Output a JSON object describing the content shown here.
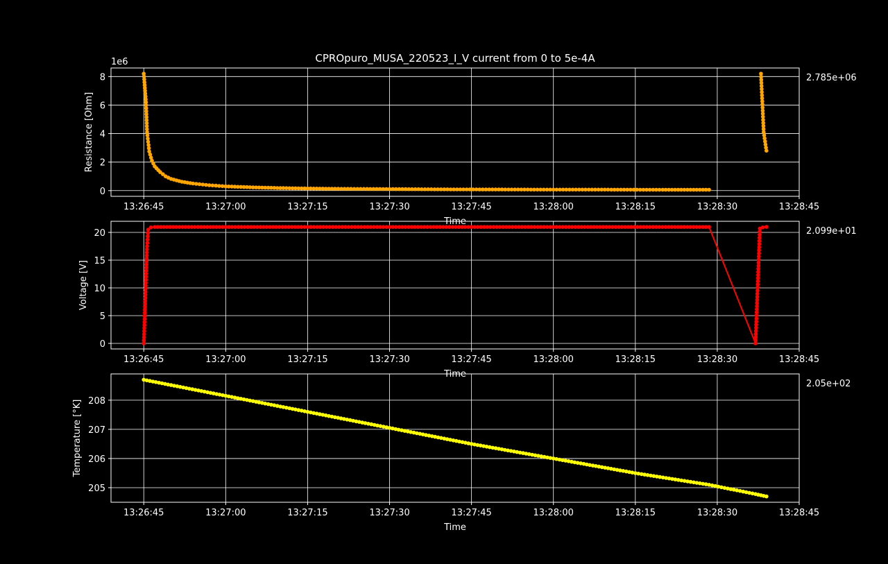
{
  "figure": {
    "title": "CPROpuro_MUSA_220523_I_V current from 0 to 5e-4A",
    "background": "#000000"
  },
  "chart_data": [
    {
      "type": "line",
      "ylabel": "Resistance [Ohm]",
      "xlabel": "Time",
      "offset_text": "1e6",
      "last_value_label": "2.785e+06",
      "color": "#FFA500",
      "grid": true,
      "xlim": [
        "13:26:39",
        "13:28:45"
      ],
      "ylim": [
        -0.4,
        8.6
      ],
      "yticks": [
        0,
        2,
        4,
        6,
        8
      ],
      "xticks": [
        "13:26:45",
        "13:27:00",
        "13:27:15",
        "13:27:30",
        "13:27:45",
        "13:28:00",
        "13:28:15",
        "13:28:30",
        "13:28:45"
      ],
      "series": [
        {
          "segments": [
            {
              "points": [
                [
                  "13:26:45.0",
                  8.2
                ],
                [
                  "13:26:45.2",
                  7.2
                ],
                [
                  "13:26:45.4",
                  6.2
                ],
                [
                  "13:26:45.6",
                  4.1
                ],
                [
                  "13:26:46.0",
                  2.75
                ],
                [
                  "13:26:46.5",
                  2.1
                ],
                [
                  "13:26:47.0",
                  1.7
                ],
                [
                  "13:26:48.0",
                  1.3
                ],
                [
                  "13:26:49.0",
                  1.0
                ],
                [
                  "13:26:50.0",
                  0.82
                ],
                [
                  "13:26:52.0",
                  0.62
                ],
                [
                  "13:26:54.0",
                  0.5
                ],
                [
                  "13:26:57.0",
                  0.38
                ],
                [
                  "13:27:00.0",
                  0.3
                ],
                [
                  "13:27:05.0",
                  0.23
                ],
                [
                  "13:27:10.0",
                  0.18
                ],
                [
                  "13:27:15.0",
                  0.15
                ],
                [
                  "13:27:20.0",
                  0.13
                ],
                [
                  "13:27:30.0",
                  0.11
                ],
                [
                  "13:27:40.0",
                  0.09
                ],
                [
                  "13:27:50.0",
                  0.08
                ],
                [
                  "13:28:00.0",
                  0.07
                ],
                [
                  "13:28:10.0",
                  0.07
                ],
                [
                  "13:28:20.0",
                  0.06
                ],
                [
                  "13:28:28.5",
                  0.06
                ]
              ]
            },
            {
              "points": [
                [
                  "13:28:38.0",
                  8.2
                ],
                [
                  "13:28:38.5",
                  4.1
                ],
                [
                  "13:28:39.0",
                  2.8
                ]
              ]
            }
          ]
        }
      ]
    },
    {
      "type": "line",
      "ylabel": "Voltage [V]",
      "xlabel": "Time",
      "last_value_label": "2.099e+01",
      "color": "#FF0000",
      "grid": true,
      "xlim": [
        "13:26:39",
        "13:28:45"
      ],
      "ylim": [
        -1.0,
        22.0
      ],
      "yticks": [
        0,
        5,
        10,
        15,
        20
      ],
      "xticks": [
        "13:26:45",
        "13:27:00",
        "13:27:15",
        "13:27:30",
        "13:27:45",
        "13:28:00",
        "13:28:15",
        "13:28:30",
        "13:28:45"
      ],
      "series": [
        {
          "segments": [
            {
              "points": [
                [
                  "13:26:45.0",
                  0.0
                ],
                [
                  "13:26:45.2",
                  5.5
                ],
                [
                  "13:26:45.4",
                  12.0
                ],
                [
                  "13:26:45.6",
                  17.5
                ],
                [
                  "13:26:45.8",
                  20.5
                ],
                [
                  "13:26:46.3",
                  20.9
                ],
                [
                  "13:26:47.0",
                  20.98
                ],
                [
                  "13:27:00.0",
                  20.98
                ],
                [
                  "13:27:30.0",
                  20.98
                ],
                [
                  "13:28:00.0",
                  20.98
                ],
                [
                  "13:28:28.5",
                  20.98
                ],
                [
                  "13:28:37.0",
                  0.0
                ],
                [
                  "13:28:37.8",
                  20.7
                ],
                [
                  "13:28:38.3",
                  20.9
                ],
                [
                  "13:28:39.0",
                  20.99
                ]
              ]
            }
          ]
        }
      ]
    },
    {
      "type": "line",
      "ylabel": "Temperature [°K]",
      "xlabel": "Time",
      "last_value_label": "2.05e+02",
      "color": "#FFFF00",
      "grid": true,
      "xlim": [
        "13:26:39",
        "13:28:45"
      ],
      "ylim": [
        204.5,
        208.9
      ],
      "yticks": [
        205,
        206,
        207,
        208
      ],
      "xticks": [
        "13:26:45",
        "13:27:00",
        "13:27:15",
        "13:27:30",
        "13:27:45",
        "13:28:00",
        "13:28:15",
        "13:28:30",
        "13:28:45"
      ],
      "series": [
        {
          "segments": [
            {
              "points": [
                [
                  "13:26:45.0",
                  208.7
                ],
                [
                  "13:27:00.0",
                  208.15
                ],
                [
                  "13:27:15.0",
                  207.6
                ],
                [
                  "13:27:30.0",
                  207.05
                ],
                [
                  "13:27:45.0",
                  206.5
                ],
                [
                  "13:28:00.0",
                  206.0
                ],
                [
                  "13:28:15.0",
                  205.5
                ],
                [
                  "13:28:28.5",
                  205.1
                ],
                [
                  "13:28:37.0",
                  204.78
                ],
                [
                  "13:28:39.0",
                  204.7
                ]
              ]
            }
          ]
        }
      ]
    }
  ]
}
